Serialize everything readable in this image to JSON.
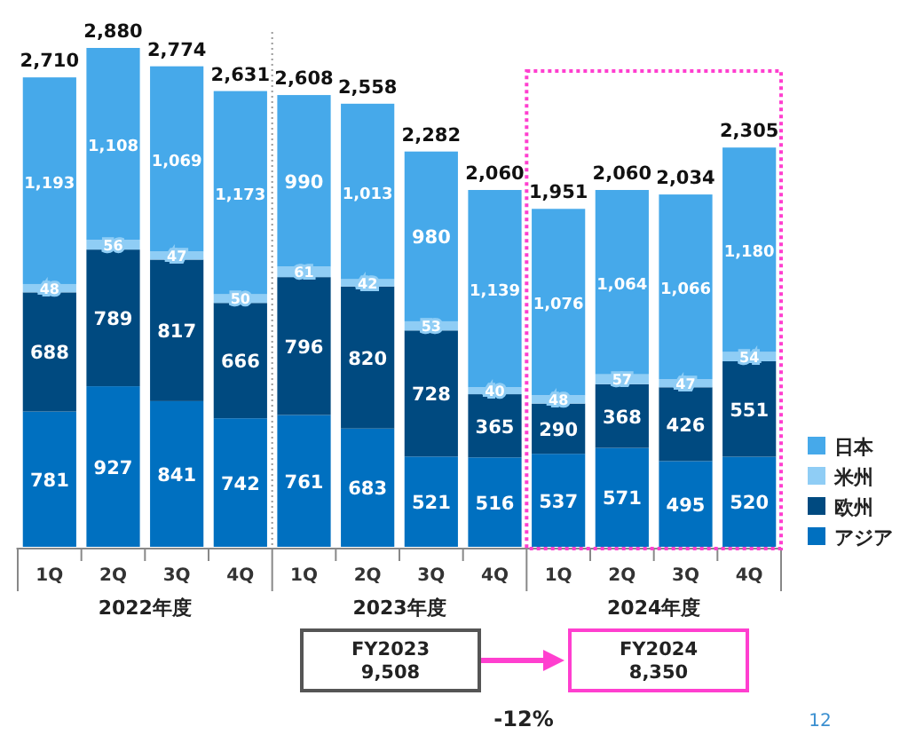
{
  "chart_data": {
    "type": "bar",
    "stacked": true,
    "legend": "right",
    "categories": [
      "1Q",
      "2Q",
      "3Q",
      "4Q",
      "1Q",
      "2Q",
      "3Q",
      "4Q",
      "1Q",
      "2Q",
      "3Q",
      "4Q"
    ],
    "series": [
      {
        "name": "アジア",
        "color": "#0070c0",
        "values": [
          781,
          927,
          841,
          742,
          761,
          683,
          521,
          516,
          537,
          571,
          495,
          520
        ],
        "value_labels": [
          "781",
          "927",
          "841",
          "742",
          "761",
          "683",
          "521",
          "516",
          "537",
          "571",
          "495",
          "520"
        ]
      },
      {
        "name": "欧州",
        "color": "#004a80",
        "values": [
          688,
          789,
          817,
          666,
          796,
          820,
          728,
          365,
          290,
          368,
          426,
          551
        ],
        "value_labels": [
          "688",
          "789",
          "817",
          "666",
          "796",
          "820",
          "728",
          "365",
          "290",
          "368",
          "426",
          "551"
        ]
      },
      {
        "name": "米州",
        "color": "#8fcdf5",
        "values": [
          48,
          56,
          47,
          50,
          61,
          42,
          53,
          40,
          48,
          57,
          47,
          54
        ],
        "value_labels": [
          "48",
          "56",
          "47",
          "50",
          "61",
          "42",
          "53",
          "40",
          "48",
          "57",
          "47",
          "54"
        ]
      },
      {
        "name": "日本",
        "color": "#46a9ea",
        "values": [
          1193,
          1108,
          1069,
          1173,
          990,
          1013,
          980,
          1139,
          1076,
          1064,
          1066,
          1180
        ],
        "value_labels": [
          "1,193",
          "1,108",
          "1,069",
          "1,173",
          "990",
          "1,013",
          "980",
          "1,139",
          "1,076",
          "1,064",
          "1,066",
          "1,180"
        ]
      }
    ],
    "totals": [
      "2,710",
      "2,880",
      "2,774",
      "2,631",
      "2,608",
      "2,558",
      "2,282",
      "2,060",
      "1,951",
      "2,060",
      "2,034",
      "2,305"
    ],
    "annotations": [
      "2022年度",
      "2023年度",
      "2024年度",
      "FY2023\n9,508",
      "FY2024\n8,350",
      "-12%",
      "12"
    ]
  }
}
